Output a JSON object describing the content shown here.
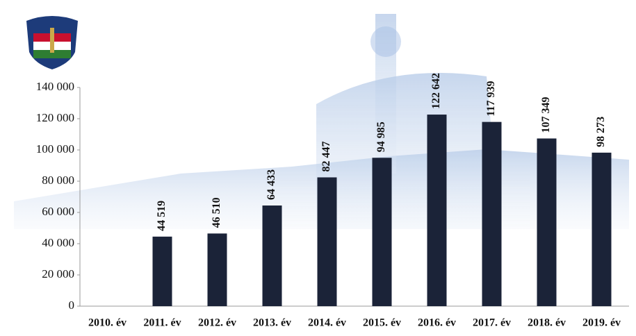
{
  "chart_data": {
    "type": "bar",
    "categories": [
      "2010. év",
      "2011. év",
      "2012. év",
      "2013. év",
      "2014. év",
      "2015. év",
      "2016. év",
      "2017. év",
      "2018. év",
      "2019. év"
    ],
    "values": [
      null,
      44519,
      46510,
      64433,
      82447,
      94985,
      122642,
      117939,
      107349,
      98273
    ],
    "value_labels": [
      null,
      "44 519",
      "46 510",
      "64 433",
      "82 447",
      "94 985",
      "122 642",
      "117 939",
      "107 349",
      "98 273"
    ],
    "color": "#1b2338",
    "ylim": [
      0,
      140000
    ],
    "yticks": [
      0,
      {
        "value": 20000,
        "label": "20 000"
      },
      {
        "value": 40000,
        "label": "40 000"
      },
      {
        "value": 60000,
        "label": "60 000"
      },
      {
        "value": 80000,
        "label": "80 000"
      },
      {
        "value": 100000,
        "label": "100 000"
      },
      {
        "value": 120000,
        "label": "120 000"
      },
      {
        "value": 140000,
        "label": "140 000"
      }
    ],
    "grid": false
  }
}
